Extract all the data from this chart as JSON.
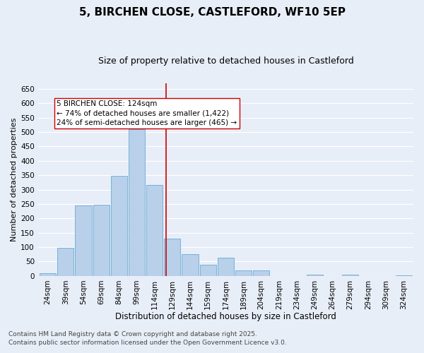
{
  "title": "5, BIRCHEN CLOSE, CASTLEFORD, WF10 5EP",
  "subtitle": "Size of property relative to detached houses in Castleford",
  "xlabel": "Distribution of detached houses by size in Castleford",
  "ylabel": "Number of detached properties",
  "categories": [
    "24sqm",
    "39sqm",
    "54sqm",
    "69sqm",
    "84sqm",
    "99sqm",
    "114sqm",
    "129sqm",
    "144sqm",
    "159sqm",
    "174sqm",
    "189sqm",
    "204sqm",
    "219sqm",
    "234sqm",
    "249sqm",
    "264sqm",
    "279sqm",
    "294sqm",
    "309sqm",
    "324sqm"
  ],
  "values": [
    10,
    97,
    245,
    248,
    348,
    510,
    315,
    130,
    75,
    40,
    63,
    20,
    20,
    0,
    0,
    5,
    0,
    5,
    0,
    0,
    3
  ],
  "bar_color": "#b8d0ea",
  "bar_edge_color": "#6aaad4",
  "background_color": "#e8eef8",
  "grid_color": "#ffffff",
  "annotation_text": "5 BIRCHEN CLOSE: 124sqm\n← 74% of detached houses are smaller (1,422)\n24% of semi-detached houses are larger (465) →",
  "annotation_box_color": "#ffffff",
  "annotation_box_edge": "#cc0000",
  "footer_line1": "Contains HM Land Registry data © Crown copyright and database right 2025.",
  "footer_line2": "Contains public sector information licensed under the Open Government Licence v3.0.",
  "ylim": [
    0,
    670
  ],
  "yticks": [
    0,
    50,
    100,
    150,
    200,
    250,
    300,
    350,
    400,
    450,
    500,
    550,
    600,
    650
  ],
  "title_fontsize": 11,
  "subtitle_fontsize": 9,
  "xlabel_fontsize": 8.5,
  "ylabel_fontsize": 8,
  "tick_fontsize": 7.5,
  "annotation_fontsize": 7.5,
  "footer_fontsize": 6.5
}
